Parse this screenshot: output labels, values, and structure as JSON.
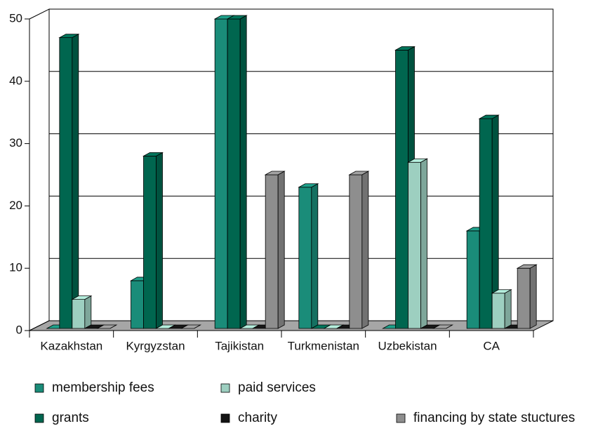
{
  "chart_data": {
    "type": "bar3d",
    "categories": [
      "Kazakhstan",
      "Kyrgyzstan",
      "Tajikistan",
      "Turkmenistan",
      "Uzbekistan",
      "CA"
    ],
    "series": [
      {
        "name": "membership fees",
        "color": "#1a8c79",
        "values": [
          0,
          8,
          50,
          23,
          0,
          16
        ]
      },
      {
        "name": "grants",
        "color": "#00664f",
        "values": [
          47,
          28,
          50,
          0,
          45,
          34
        ]
      },
      {
        "name": "paid services",
        "color": "#9dcfc0",
        "values": [
          5,
          0,
          0,
          0,
          27,
          6
        ]
      },
      {
        "name": "charity",
        "color": "#141414",
        "values": [
          0,
          0,
          0,
          0,
          0,
          0
        ]
      },
      {
        "name": "financing by state stuctures",
        "color": "#8e8e8e",
        "values": [
          0,
          0,
          25,
          25,
          0,
          10
        ]
      }
    ],
    "ylim": [
      0,
      50
    ],
    "yticks": [
      0,
      10,
      20,
      30,
      40,
      50
    ],
    "grid": true
  }
}
